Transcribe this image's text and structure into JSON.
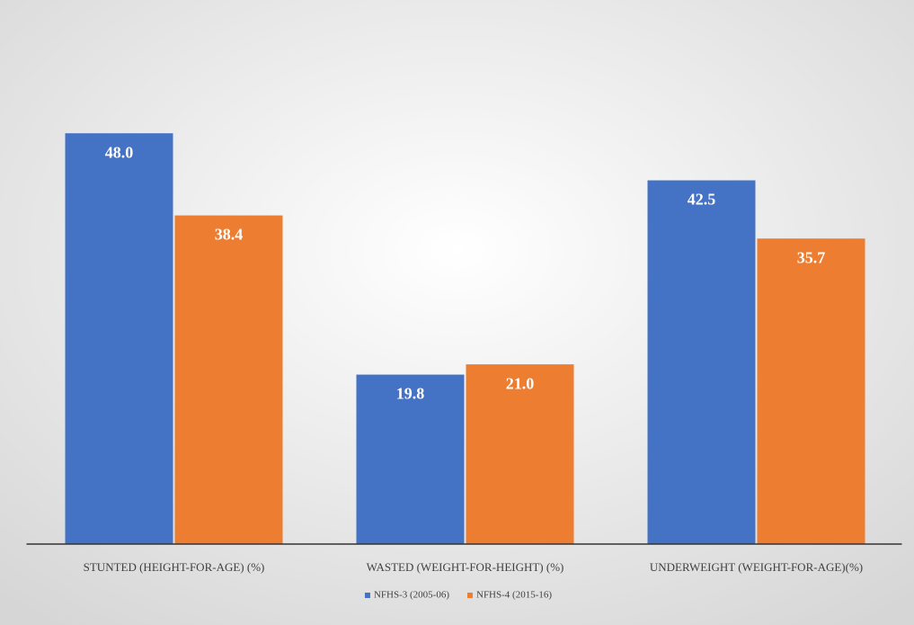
{
  "chart_data": {
    "type": "bar",
    "categories": [
      "STUNTED (HEIGHT-FOR-AGE) (%)",
      "WASTED (WEIGHT-FOR-HEIGHT) (%)",
      "UNDERWEIGHT (WEIGHT-FOR-AGE)(%)"
    ],
    "series": [
      {
        "name": "NFHS-3 (2005-06)",
        "color": "#4472c4",
        "values": [
          48.0,
          19.8,
          42.5
        ],
        "value_labels": [
          "48.0",
          "19.8",
          "42.5"
        ]
      },
      {
        "name": "NFHS-4 (2015-16)",
        "color": "#ed7d31",
        "values": [
          38.4,
          21.0,
          35.7
        ],
        "value_labels": [
          "38.4",
          "21.0",
          "35.7"
        ]
      }
    ],
    "ylim": [
      0,
      60
    ],
    "legend": "bottom"
  }
}
